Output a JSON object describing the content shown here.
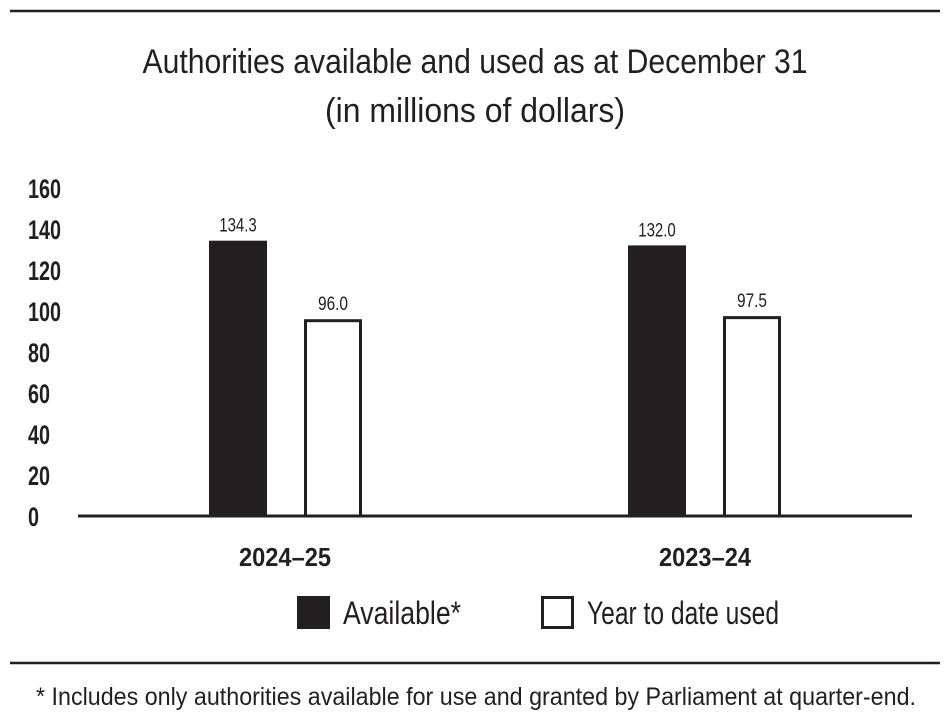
{
  "chart_data": {
    "type": "bar",
    "title": "Authorities available and used as at December 31",
    "subtitle": "(in millions of dollars)",
    "categories": [
      "2024–25",
      "2023–24"
    ],
    "series": [
      {
        "name": "Available*",
        "values": [
          134.3,
          132.0
        ],
        "color": "#231f20",
        "fill": "solid"
      },
      {
        "name": "Year to date used",
        "values": [
          96.0,
          97.5
        ],
        "color": "#ffffff",
        "fill": "outline"
      }
    ],
    "data_labels": [
      [
        "134.3",
        "132.0"
      ],
      [
        "96.0",
        "97.5"
      ]
    ],
    "yticks": [
      "0",
      "20",
      "40",
      "60",
      "80",
      "100",
      "120",
      "140",
      "160"
    ],
    "ylim": [
      0,
      160
    ],
    "xlabel": "",
    "ylabel": "",
    "grid": false,
    "legend_position": "bottom",
    "footnote": "* Includes only authorities available for use and granted by Parliament at quarter-end."
  }
}
